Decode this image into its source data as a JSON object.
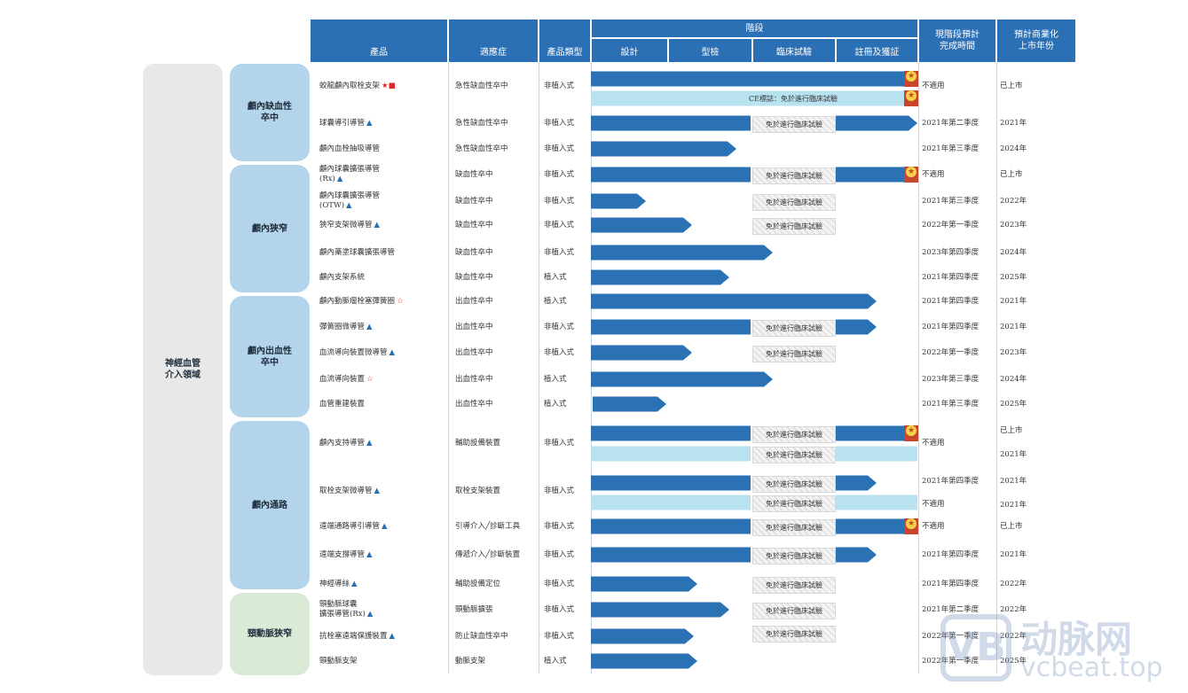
{
  "header": {
    "product": "產品",
    "indication": "適應症",
    "type": "產品類型",
    "stage": "階段",
    "design": "設計",
    "type_test": "型檢",
    "clinical": "臨床試驗",
    "registration": "註冊及獲証",
    "completion": "現階段預計\n完成時間",
    "launch": "預計商業化\n上市年份"
  },
  "domain": "神經血管\n介入領域",
  "exempt_label": "免於進行臨床試驗",
  "ce_label": "CE標誌：免於進行臨床試驗",
  "categories": [
    {
      "name": "顱內缺血性\n卒中"
    },
    {
      "name": "顱內狹窄"
    },
    {
      "name": "顱內出血性\n卒中"
    },
    {
      "name": "顱內通路"
    },
    {
      "name": "頸動脈狹窄"
    }
  ],
  "rows": [
    {
      "product": "蛟龍顱內取栓支架",
      "marks": "★■",
      "indication": "急性缺血性卒中",
      "type": "非植入式",
      "completion": "不適用",
      "launch": "已上市"
    },
    {
      "product": "球囊導引導管",
      "marks": "▲",
      "indication": "急性缺血性卒中",
      "type": "非植入式",
      "completion": "2021年第二季度",
      "launch": "2021年"
    },
    {
      "product": "顱內血栓抽吸導管",
      "marks": "",
      "indication": "急性缺血性卒中",
      "type": "非植入式",
      "completion": "2021年第三季度",
      "launch": "2024年"
    },
    {
      "product": "顱內球囊擴張導管\n(Rx)",
      "marks": "▲",
      "indication": "缺血性卒中",
      "type": "非植入式",
      "completion": "不適用",
      "launch": "已上市"
    },
    {
      "product": "顱內球囊擴張導管\n(OTW)",
      "marks": "▲",
      "indication": "缺血性卒中",
      "type": "非植入式",
      "completion": "2021年第三季度",
      "launch": "2022年"
    },
    {
      "product": "狹窄支架微導管",
      "marks": "▲",
      "indication": "缺血性卒中",
      "type": "非植入式",
      "completion": "2022年第一季度",
      "launch": "2023年"
    },
    {
      "product": "顱內藥塗球囊擴張導管",
      "marks": "",
      "indication": "缺血性卒中",
      "type": "非植入式",
      "completion": "2023年第四季度",
      "launch": "2024年"
    },
    {
      "product": "顱內支架系統",
      "marks": "",
      "indication": "缺血性卒中",
      "type": "植入式",
      "completion": "2021年第四季度",
      "launch": "2025年"
    },
    {
      "product": "顱內動脈瘤栓塞彈簧圈",
      "marks": "☆",
      "indication": "出血性卒中",
      "type": "植入式",
      "completion": "2021年第四季度",
      "launch": "2021年"
    },
    {
      "product": "彈簧圈微導管",
      "marks": "▲",
      "indication": "出血性卒中",
      "type": "非植入式",
      "completion": "2021年第四季度",
      "launch": "2021年"
    },
    {
      "product": "血流導向裝置微導管",
      "marks": "▲",
      "indication": "出血性卒中",
      "type": "非植入式",
      "completion": "2022年第一季度",
      "launch": "2023年"
    },
    {
      "product": "血流導向裝置",
      "marks": "☆",
      "indication": "出血性卒中",
      "type": "植入式",
      "completion": "2023年第三季度",
      "launch": "2024年"
    },
    {
      "product": "血管重建裝置",
      "marks": "",
      "indication": "出血性卒中",
      "type": "植入式",
      "completion": "2021年第三季度",
      "launch": "2025年"
    },
    {
      "product": "顱內支持導管",
      "marks": "▲",
      "indication": "輔助設備裝置",
      "type": "非植入式",
      "completion": "不適用",
      "launch": "已上市",
      "launch2": "2021年"
    },
    {
      "product": "取栓支架微導管",
      "marks": "▲",
      "indication": "取栓支架裝置",
      "type": "非植入式",
      "completion": "2021年第四季度",
      "completion2": "不適用",
      "launch": "2021年",
      "launch2": "2021年"
    },
    {
      "product": "遠端通路導引導管",
      "marks": "▲",
      "indication": "引導介入╱診斷工具",
      "type": "非植入式",
      "completion": "不適用",
      "launch": "已上市"
    },
    {
      "product": "遠端支撐導管",
      "marks": "▲",
      "indication": "傳遞介入╱診斷裝置",
      "type": "非植入式",
      "completion": "2021年第四季度",
      "launch": "2021年"
    },
    {
      "product": "神經導絲",
      "marks": "▲",
      "indication": "輔助設備定位",
      "type": "非植入式",
      "completion": "2021年第四季度",
      "launch": "2022年"
    },
    {
      "product": "頸動脈球囊\n擴張導管(Rx)",
      "marks": "▲",
      "indication": "頸動脈擴張",
      "type": "非植入式",
      "completion": "2021年第二季度",
      "launch": "2022年"
    },
    {
      "product": "抗栓塞遠端保護裝置",
      "marks": "▲",
      "indication": "防止缺血性卒中",
      "type": "非植入式",
      "completion": "2022年第一季度",
      "launch": "2022年"
    },
    {
      "product": "頸動脈支架",
      "marks": "",
      "indication": "動脈支架",
      "type": "植入式",
      "completion": "2022年第一季度",
      "launch": "2025年"
    }
  ],
  "watermark": {
    "brand": "动脉网",
    "domain": "vcbeat.top"
  },
  "colors": {
    "header": "#2b6fb5",
    "bar": "#2b72b5",
    "light_bar": "#b9e2f0",
    "cat_blue": "#b3d4ea",
    "cat_green": "#dbead6",
    "domain_bg": "#e8e8e8"
  }
}
